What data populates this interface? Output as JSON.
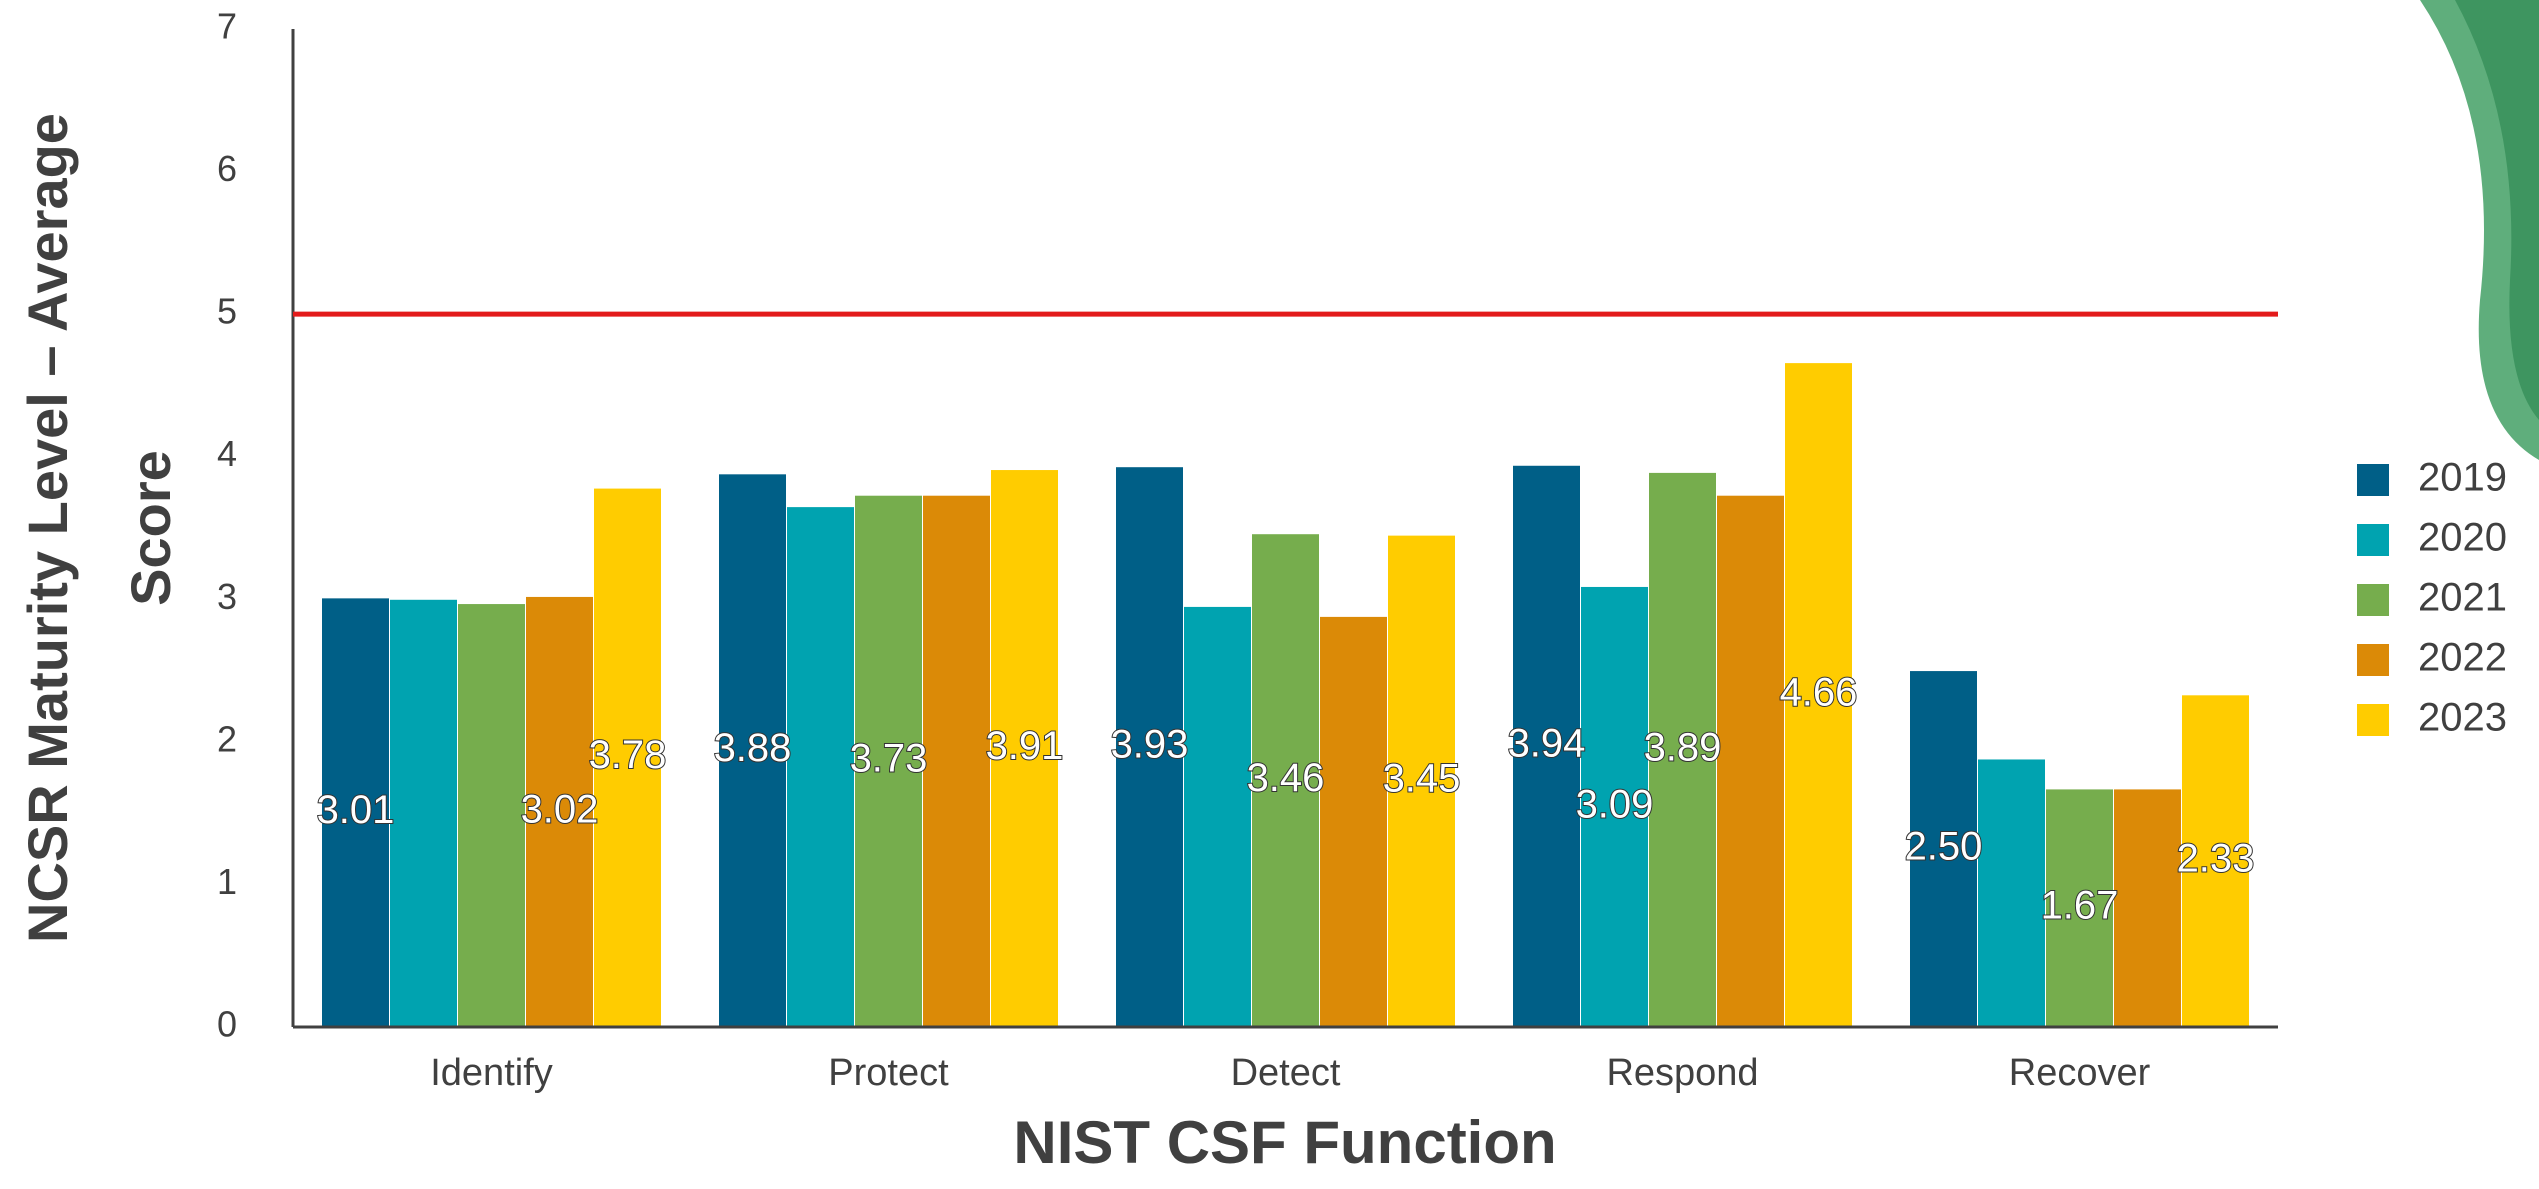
{
  "chart_data": {
    "type": "bar",
    "x_label": "NIST CSF Function",
    "y_label": [
      "NCSR Maturity Level – Average",
      "Score"
    ],
    "categories": [
      "Identify",
      "Protect",
      "Detect",
      "Respond",
      "Recover"
    ],
    "series": [
      {
        "name": "2019",
        "color": "#005f87",
        "values": [
          3.01,
          3.88,
          3.93,
          3.94,
          2.5
        ],
        "value_labels": [
          "3.01",
          "3.88",
          "3.93",
          "3.94",
          "2.50"
        ]
      },
      {
        "name": "2020",
        "color": "#00a3b0",
        "values": [
          3.0,
          3.65,
          2.95,
          3.09,
          1.88
        ],
        "value_labels": [
          null,
          null,
          null,
          "3.09",
          null
        ]
      },
      {
        "name": "2021",
        "color": "#76ad4d",
        "values": [
          2.97,
          3.73,
          3.46,
          3.89,
          1.67
        ],
        "value_labels": [
          null,
          "3.73",
          "3.46",
          "3.89",
          "1.67"
        ]
      },
      {
        "name": "2022",
        "color": "#db8a07",
        "values": [
          3.02,
          3.73,
          2.88,
          3.73,
          1.67
        ],
        "value_labels": [
          "3.02",
          null,
          null,
          null,
          null
        ]
      },
      {
        "name": "2023",
        "color": "#ffcc00",
        "values": [
          3.78,
          3.91,
          3.45,
          4.66,
          2.33
        ],
        "value_labels": [
          "3.78",
          "3.91",
          "3.45",
          "4.66",
          "2.33"
        ]
      }
    ],
    "reference_line": {
      "value": 5,
      "color": "#e31b1b"
    },
    "ylim": [
      0,
      7
    ],
    "yticks": [
      0,
      1,
      2,
      3,
      4,
      5,
      6,
      7
    ],
    "legend": "right"
  }
}
